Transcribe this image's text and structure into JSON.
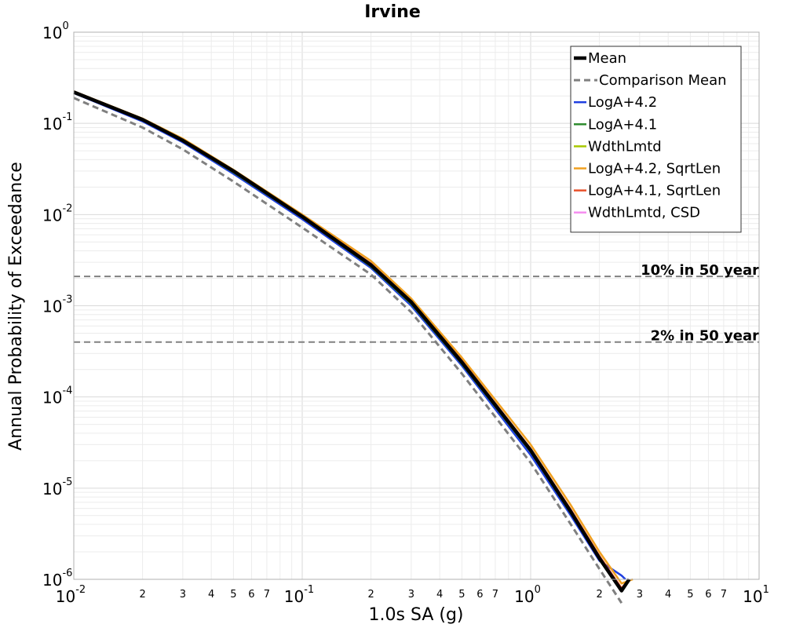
{
  "chart_data": {
    "type": "line",
    "title": "Irvine",
    "xlabel": "1.0s SA (g)",
    "ylabel": "Annual Probability of Exceedance",
    "x_scale": "log",
    "y_scale": "log",
    "xlim": [
      0.01,
      10
    ],
    "ylim": [
      1e-06,
      1
    ],
    "grid": true,
    "legend_position": "top-right",
    "x_ticks": [
      {
        "base": "10",
        "exp": "-2"
      },
      {
        "base": "10",
        "exp": "-1"
      },
      {
        "base": "10",
        "exp": "0"
      },
      {
        "base": "10",
        "exp": "1"
      }
    ],
    "y_ticks": [
      {
        "base": "10",
        "exp": "0"
      },
      {
        "base": "10",
        "exp": "-1"
      },
      {
        "base": "10",
        "exp": "-2"
      },
      {
        "base": "10",
        "exp": "-3"
      },
      {
        "base": "10",
        "exp": "-4"
      },
      {
        "base": "10",
        "exp": "-5"
      },
      {
        "base": "10",
        "exp": "-6"
      }
    ],
    "x_minor_labels": [
      "2",
      "3",
      "4",
      "5",
      "6",
      "7"
    ],
    "reference_lines": [
      {
        "label": "10% in 50 year",
        "y": 0.0021
      },
      {
        "label": "2% in 50 year",
        "y": 0.0004
      }
    ],
    "series": [
      {
        "name": "Mean",
        "color": "#000000",
        "style": "solid",
        "width": 4.5,
        "x": [
          0.01,
          0.02,
          0.03,
          0.05,
          0.1,
          0.2,
          0.3,
          0.5,
          1.0,
          1.5,
          2.0,
          2.5,
          2.7
        ],
        "y": [
          0.22,
          0.11,
          0.065,
          0.03,
          0.0095,
          0.0028,
          0.0011,
          0.00024,
          2.6e-05,
          5.5e-06,
          1.7e-06,
          7.5e-07,
          1e-06
        ]
      },
      {
        "name": "Comparison Mean",
        "color": "#808080",
        "style": "dashed",
        "width": 3,
        "x": [
          0.01,
          0.02,
          0.03,
          0.05,
          0.1,
          0.2,
          0.3,
          0.5,
          1.0,
          1.5,
          2.0,
          2.5
        ],
        "y": [
          0.19,
          0.09,
          0.052,
          0.023,
          0.0072,
          0.0022,
          0.00085,
          0.00018,
          1.9e-05,
          4e-06,
          1.3e-06,
          5.5e-07
        ]
      },
      {
        "name": "LogA+4.2",
        "color": "#1f3fe0",
        "style": "solid",
        "width": 2.5,
        "x": [
          0.01,
          0.02,
          0.03,
          0.05,
          0.1,
          0.2,
          0.3,
          0.5,
          1.0,
          1.5,
          2.0,
          2.5,
          2.6
        ],
        "y": [
          0.215,
          0.105,
          0.062,
          0.028,
          0.0089,
          0.0026,
          0.001,
          0.00022,
          2.3e-05,
          5e-06,
          1.6e-06,
          1.1e-06,
          1e-06
        ]
      },
      {
        "name": "LogA+4.1",
        "color": "#2e8b2e",
        "style": "solid",
        "width": 2.5,
        "x": [
          0.01,
          0.02,
          0.03,
          0.05,
          0.1,
          0.2,
          0.3,
          0.5,
          1.0,
          1.5,
          2.0,
          2.5,
          2.7
        ],
        "y": [
          0.22,
          0.108,
          0.064,
          0.029,
          0.0093,
          0.0027,
          0.00105,
          0.00023,
          2.5e-05,
          5.3e-06,
          1.7e-06,
          7.5e-07,
          1e-06
        ]
      },
      {
        "name": "WdthLmtd",
        "color": "#a8c800",
        "style": "solid",
        "width": 2.5,
        "x": [
          0.01,
          0.02,
          0.03,
          0.05,
          0.1,
          0.2,
          0.3,
          0.5,
          1.0,
          1.5,
          2.0,
          2.5,
          2.7
        ],
        "y": [
          0.22,
          0.11,
          0.065,
          0.03,
          0.0096,
          0.0028,
          0.0011,
          0.00024,
          2.6e-05,
          5.6e-06,
          1.7e-06,
          7.5e-07,
          1e-06
        ]
      },
      {
        "name": "LogA+4.2, SqrtLen",
        "color": "#f0a020",
        "style": "solid",
        "width": 2.5,
        "x": [
          0.01,
          0.02,
          0.03,
          0.05,
          0.1,
          0.2,
          0.3,
          0.5,
          1.0,
          1.5,
          2.0,
          2.5,
          2.8
        ],
        "y": [
          0.225,
          0.113,
          0.068,
          0.031,
          0.01,
          0.0031,
          0.0012,
          0.00027,
          3e-05,
          6.5e-06,
          2e-06,
          9e-07,
          1e-06
        ]
      },
      {
        "name": "LogA+4.1, SqrtLen",
        "color": "#e8502a",
        "style": "solid",
        "width": 2.5,
        "x": [
          0.01,
          0.02,
          0.03,
          0.05,
          0.1,
          0.2,
          0.3,
          0.5,
          1.0,
          1.5,
          2.0,
          2.5,
          2.7
        ],
        "y": [
          0.222,
          0.111,
          0.066,
          0.0305,
          0.0097,
          0.0029,
          0.00112,
          0.00025,
          2.7e-05,
          5.8e-06,
          1.8e-06,
          8e-07,
          1e-06
        ]
      },
      {
        "name": "WdthLmtd, CSD",
        "color": "#f58ef0",
        "style": "solid",
        "width": 2.5,
        "x": [
          0.01,
          0.02,
          0.03,
          0.05,
          0.1,
          0.2,
          0.3,
          0.5,
          1.0,
          1.5,
          2.0,
          2.5,
          2.7
        ],
        "y": [
          0.22,
          0.11,
          0.065,
          0.03,
          0.0095,
          0.0028,
          0.0011,
          0.00024,
          2.6e-05,
          5.5e-06,
          1.7e-06,
          7.5e-07,
          1e-06
        ]
      }
    ]
  }
}
